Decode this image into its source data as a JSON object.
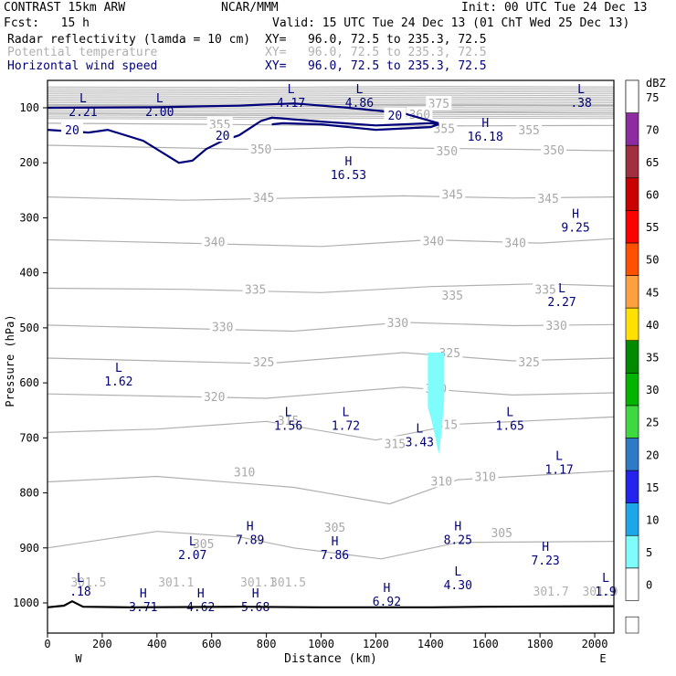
{
  "header": {
    "model": "CONTRAST 15km ARW",
    "org": "NCAR/MMM",
    "init": "Init: 00 UTC Tue 24 Dec 13",
    "fcst": "Fcst:   15 h",
    "valid": "Valid: 15 UTC Tue 24 Dec 13 (01 ChT Wed 25 Dec 13)"
  },
  "legend": [
    {
      "label": "Radar reflectivity (lamda = 10 cm)",
      "xy": "XY=   96.0, 72.5 to 235.3, 72.5",
      "color": "#000000"
    },
    {
      "label": "Potential temperature",
      "xy": "XY=   96.0, 72.5 to 235.3, 72.5",
      "color": "#b0b0b0"
    },
    {
      "label": "Horizontal wind speed",
      "xy": "XY=   96.0, 72.5 to 235.3, 72.5",
      "color": "#00007a"
    }
  ],
  "chart_data": {
    "type": "cross-section",
    "xlabel": "Distance (km)",
    "ylabel": "Pressure (hPa)",
    "xlim": [
      0,
      2070
    ],
    "ylim": [
      1050,
      60
    ],
    "x_ticks": [
      0,
      200,
      400,
      600,
      800,
      1000,
      1200,
      1400,
      1600,
      1800,
      2000
    ],
    "y_ticks": [
      100,
      200,
      300,
      400,
      500,
      600,
      700,
      800,
      900,
      1000
    ],
    "endpoints": {
      "left": "W",
      "right": "E"
    },
    "colorbar": {
      "title": "dBZ",
      "ticks": [
        "0",
        "5",
        "10",
        "15",
        "20",
        "25",
        "30",
        "35",
        "40",
        "45",
        "50",
        "55",
        "60",
        "65",
        "70",
        "75"
      ],
      "colors": [
        "#ffffff",
        "#7ffdfd",
        "#1ca8e8",
        "#2424ee",
        "#2f7ac4",
        "#40d840",
        "#00b400",
        "#008a00",
        "#ffe000",
        "#ffa040",
        "#ff5000",
        "#ff0000",
        "#c80000",
        "#a03040",
        "#8c2ca0",
        "#c07cc0"
      ]
    },
    "isentropes": [
      {
        "label": "375",
        "points": [
          [
            0,
            95
          ],
          [
            500,
            96
          ],
          [
            1000,
            94
          ],
          [
            1400,
            95
          ],
          [
            2070,
            96
          ]
        ],
        "labels_at": [
          [
            1430,
            92
          ]
        ]
      },
      {
        "label": "360",
        "points": [
          [
            0,
            110
          ],
          [
            600,
            112
          ],
          [
            1200,
            110
          ],
          [
            1600,
            108
          ],
          [
            2070,
            110
          ]
        ],
        "labels_at": [
          [
            1360,
            112
          ]
        ]
      },
      {
        "label": "355",
        "points": [
          [
            0,
            128
          ],
          [
            600,
            130
          ],
          [
            1000,
            132
          ],
          [
            1400,
            133
          ],
          [
            2070,
            132
          ]
        ],
        "labels_at": [
          [
            630,
            130
          ],
          [
            1450,
            137
          ],
          [
            1760,
            140
          ]
        ]
      },
      {
        "label": "350",
        "points": [
          [
            0,
            168
          ],
          [
            400,
            172
          ],
          [
            800,
            176
          ],
          [
            1100,
            172
          ],
          [
            1500,
            174
          ],
          [
            2070,
            178
          ]
        ],
        "labels_at": [
          [
            780,
            175
          ],
          [
            1460,
            178
          ],
          [
            1850,
            176
          ]
        ]
      },
      {
        "label": "345",
        "points": [
          [
            0,
            262
          ],
          [
            500,
            268
          ],
          [
            900,
            264
          ],
          [
            1300,
            260
          ],
          [
            1700,
            264
          ],
          [
            2070,
            262
          ]
        ],
        "labels_at": [
          [
            790,
            263
          ],
          [
            1480,
            257
          ],
          [
            1830,
            264
          ]
        ]
      },
      {
        "label": "340",
        "points": [
          [
            0,
            340
          ],
          [
            500,
            346
          ],
          [
            1000,
            352
          ],
          [
            1400,
            340
          ],
          [
            1800,
            346
          ],
          [
            2070,
            338
          ]
        ],
        "labels_at": [
          [
            610,
            343
          ],
          [
            1410,
            342
          ],
          [
            1710,
            345
          ]
        ]
      },
      {
        "label": "335",
        "points": [
          [
            0,
            428
          ],
          [
            500,
            430
          ],
          [
            1000,
            436
          ],
          [
            1400,
            425
          ],
          [
            1800,
            420
          ],
          [
            2070,
            424
          ]
        ],
        "labels_at": [
          [
            760,
            430
          ],
          [
            1480,
            440
          ],
          [
            1820,
            430
          ]
        ]
      },
      {
        "label": "330",
        "points": [
          [
            0,
            495
          ],
          [
            400,
            500
          ],
          [
            900,
            506
          ],
          [
            1300,
            490
          ],
          [
            1700,
            496
          ],
          [
            2070,
            494
          ]
        ],
        "labels_at": [
          [
            640,
            498
          ],
          [
            1280,
            490
          ],
          [
            1860,
            495
          ]
        ]
      },
      {
        "label": "325",
        "points": [
          [
            0,
            555
          ],
          [
            400,
            560
          ],
          [
            800,
            565
          ],
          [
            1300,
            545
          ],
          [
            1700,
            560
          ],
          [
            2070,
            555
          ]
        ],
        "labels_at": [
          [
            790,
            562
          ],
          [
            1470,
            545
          ],
          [
            1760,
            562
          ]
        ]
      },
      {
        "label": "320",
        "points": [
          [
            0,
            620
          ],
          [
            400,
            624
          ],
          [
            800,
            628
          ],
          [
            1300,
            608
          ],
          [
            1700,
            622
          ],
          [
            2070,
            618
          ]
        ],
        "labels_at": [
          [
            610,
            625
          ],
          [
            1420,
            610
          ]
        ]
      },
      {
        "label": "315",
        "points": [
          [
            0,
            690
          ],
          [
            400,
            684
          ],
          [
            800,
            670
          ],
          [
            1200,
            704
          ],
          [
            1500,
            675
          ],
          [
            2070,
            662
          ]
        ],
        "labels_at": [
          [
            880,
            668
          ],
          [
            1270,
            710
          ],
          [
            1460,
            675
          ]
        ]
      },
      {
        "label": "310",
        "points": [
          [
            0,
            780
          ],
          [
            400,
            770
          ],
          [
            900,
            790
          ],
          [
            1250,
            820
          ],
          [
            1500,
            776
          ],
          [
            2070,
            760
          ]
        ],
        "labels_at": [
          [
            720,
            762
          ],
          [
            1440,
            778
          ],
          [
            1600,
            770
          ]
        ]
      },
      {
        "label": "305",
        "points": [
          [
            0,
            900
          ],
          [
            400,
            870
          ],
          [
            700,
            880
          ],
          [
            900,
            900
          ],
          [
            1220,
            920
          ],
          [
            1500,
            890
          ],
          [
            2070,
            888
          ]
        ],
        "labels_at": [
          [
            570,
            892
          ],
          [
            1050,
            862
          ],
          [
            1660,
            872
          ]
        ]
      }
    ],
    "surface_theta_labels": [
      {
        "text": "301.5",
        "x": 880,
        "p": 962
      },
      {
        "text": "301.1",
        "x": 770,
        "p": 962
      },
      {
        "text": "301.7",
        "x": 1840,
        "p": 978
      },
      {
        "text": "301.9",
        "x": 2020,
        "p": 978
      },
      {
        "text": "301.5",
        "x": 150,
        "p": 962
      },
      {
        "text": "301.1",
        "x": 470,
        "p": 962
      }
    ],
    "wind_20_contour": [
      [
        0,
        140
      ],
      [
        150,
        145
      ],
      [
        220,
        140
      ],
      [
        350,
        160
      ],
      [
        480,
        200
      ],
      [
        530,
        196
      ],
      [
        580,
        175
      ],
      [
        640,
        160
      ],
      [
        700,
        150
      ],
      [
        780,
        124
      ],
      [
        820,
        118
      ],
      [
        1000,
        125
      ],
      [
        1200,
        132
      ],
      [
        1400,
        128
      ],
      [
        1430,
        130
      ],
      [
        1400,
        135
      ],
      [
        1200,
        140
      ],
      [
        1000,
        130
      ],
      [
        860,
        128
      ],
      [
        820,
        130
      ]
    ],
    "wind_20_upper": [
      [
        0,
        100
      ],
      [
        400,
        99
      ],
      [
        700,
        96
      ],
      [
        900,
        92
      ],
      [
        1100,
        100
      ],
      [
        1300,
        110
      ],
      [
        1430,
        128
      ]
    ],
    "wind_20_labels": [
      [
        90,
        140
      ],
      [
        640,
        150
      ],
      [
        1270,
        113
      ]
    ],
    "reflectivity_cell": {
      "dbz": 5,
      "x_range": [
        1390,
        1450
      ],
      "p_range": [
        545,
        730
      ]
    },
    "wind_extrema": [
      {
        "type": "L",
        "value": "2.21",
        "x": 130,
        "p": 95
      },
      {
        "type": "L",
        "value": "2.00",
        "x": 410,
        "p": 95
      },
      {
        "type": "L",
        "value": "4.17",
        "x": 890,
        "p": 78
      },
      {
        "type": "L",
        "value": "4.86",
        "x": 1140,
        "p": 78
      },
      {
        "type": "L",
        "value": ".38",
        "x": 1950,
        "p": 78
      },
      {
        "type": "H",
        "value": "16.18",
        "x": 1600,
        "p": 140
      },
      {
        "type": "H",
        "value": "16.53",
        "x": 1100,
        "p": 210
      },
      {
        "type": "H",
        "value": "9.25",
        "x": 1930,
        "p": 305
      },
      {
        "type": "L",
        "value": "2.27",
        "x": 1880,
        "p": 440
      },
      {
        "type": "L",
        "value": "1.62",
        "x": 260,
        "p": 585
      },
      {
        "type": "L",
        "value": "1.56",
        "x": 880,
        "p": 665
      },
      {
        "type": "L",
        "value": "1.72",
        "x": 1090,
        "p": 665
      },
      {
        "type": "L",
        "value": "1.65",
        "x": 1690,
        "p": 665
      },
      {
        "type": "L",
        "value": "3.43",
        "x": 1360,
        "p": 695
      },
      {
        "type": "L",
        "value": "1.17",
        "x": 1870,
        "p": 745
      },
      {
        "type": "H",
        "value": "7.89",
        "x": 740,
        "p": 873
      },
      {
        "type": "H",
        "value": "8.25",
        "x": 1500,
        "p": 873
      },
      {
        "type": "L",
        "value": "2.07",
        "x": 530,
        "p": 900
      },
      {
        "type": "H",
        "value": "7.86",
        "x": 1050,
        "p": 900
      },
      {
        "type": "H",
        "value": "7.23",
        "x": 1820,
        "p": 910
      },
      {
        "type": "L",
        "value": ".18",
        "x": 120,
        "p": 967
      },
      {
        "type": "L",
        "value": "4.30",
        "x": 1500,
        "p": 955
      },
      {
        "type": "L",
        "value": "1.9",
        "x": 2040,
        "p": 967
      },
      {
        "type": "H",
        "value": "3.71",
        "x": 350,
        "p": 995
      },
      {
        "type": "H",
        "value": "4.62",
        "x": 560,
        "p": 995
      },
      {
        "type": "H",
        "value": "5.68",
        "x": 760,
        "p": 995
      },
      {
        "type": "H",
        "value": "6.92",
        "x": 1240,
        "p": 985
      }
    ],
    "terrain": [
      [
        0,
        1008
      ],
      [
        60,
        1005
      ],
      [
        90,
        997
      ],
      [
        130,
        1007
      ],
      [
        300,
        1008
      ],
      [
        700,
        1007
      ],
      [
        1000,
        1008
      ],
      [
        1400,
        1008
      ],
      [
        1600,
        1007
      ],
      [
        2070,
        1006
      ]
    ]
  }
}
